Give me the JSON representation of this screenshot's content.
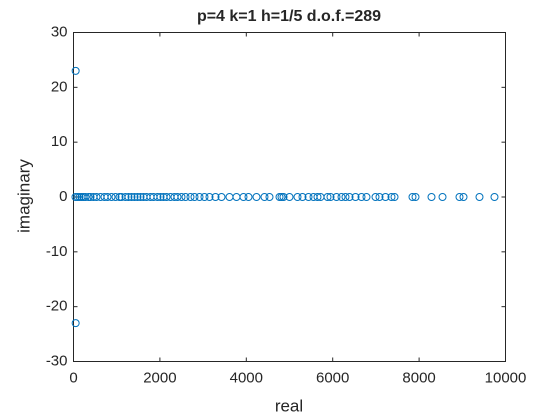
{
  "chart_data": {
    "type": "scatter",
    "title": "p=4 k=1 h=1/5 d.o.f.=289",
    "xlabel": "real",
    "ylabel": "imaginary",
    "x": [
      50,
      50,
      46,
      93,
      139,
      185,
      231,
      278,
      347,
      394,
      463,
      532,
      625,
      718,
      787,
      880,
      972,
      1065,
      1111,
      1204,
      1273,
      1343,
      1412,
      1481,
      1551,
      1620,
      1690,
      1782,
      1852,
      1944,
      2014,
      2083,
      2153,
      2245,
      2338,
      2407,
      2500,
      2593,
      2708,
      2801,
      2917,
      3032,
      3148,
      3287,
      3426,
      3611,
      3773,
      3935,
      4051,
      4236,
      4421,
      4537,
      4769,
      4815,
      4861,
      5000,
      5185,
      5301,
      5440,
      5556,
      5648,
      5718,
      5880,
      5949,
      6088,
      6204,
      6296,
      6389,
      6528,
      6667,
      6782,
      6991,
      7083,
      7222,
      7361,
      7431,
      7847,
      7917,
      8287,
      8542,
      8935,
      9028,
      9398,
      9745
    ],
    "y": [
      23,
      -23,
      0,
      0,
      0,
      0,
      0,
      0,
      0,
      0,
      0,
      0,
      0,
      0,
      0,
      0,
      0,
      0,
      0,
      0,
      0,
      0,
      0,
      0,
      0,
      0,
      0,
      0,
      0,
      0,
      0,
      0,
      0,
      0,
      0,
      0,
      0,
      0,
      0,
      0,
      0,
      0,
      0,
      0,
      0,
      0,
      0,
      0,
      0,
      0,
      0,
      0,
      0,
      0,
      0,
      0,
      0,
      0,
      0,
      0,
      0,
      0,
      0,
      0,
      0,
      0,
      0,
      0,
      0,
      0,
      0,
      0,
      0,
      0,
      0,
      0,
      0,
      0,
      0,
      0,
      0,
      0,
      0,
      0
    ],
    "color": "#0072bd",
    "xlim": [
      0,
      10000
    ],
    "xticks": [
      0,
      2000,
      4000,
      6000,
      8000,
      10000
    ],
    "ylim": [
      -30,
      30
    ],
    "yticks": [
      -30,
      -20,
      -10,
      0,
      10,
      20,
      30
    ],
    "grid": false
  }
}
